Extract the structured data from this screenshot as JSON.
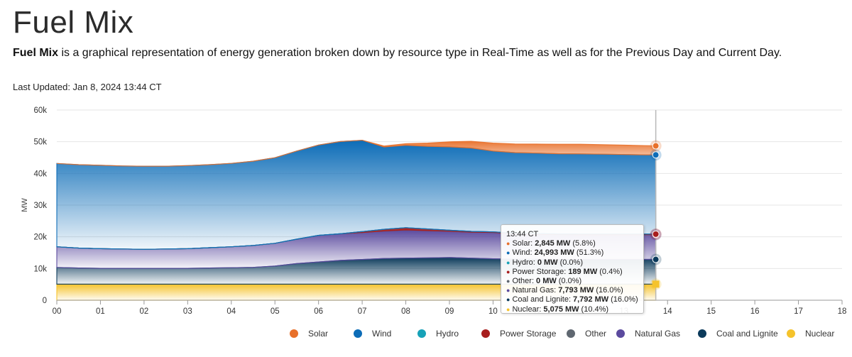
{
  "page": {
    "title": "Fuel Mix",
    "desc_bold": "Fuel Mix",
    "desc_rest": " is a graphical representation of energy generation broken down by resource type in Real-Time as well as for the Previous Day and Current Day.",
    "last_updated": "Last Updated: Jan 8, 2024 13:44 CT"
  },
  "tooltip": {
    "time": "13:44 CT",
    "rows": [
      {
        "label": "Solar:",
        "value": "2,845 MW",
        "pct": "(5.8%)",
        "color": "#e8702a"
      },
      {
        "label": "Wind:",
        "value": "24,993 MW",
        "pct": "(51.3%)",
        "color": "#0c6cb7"
      },
      {
        "label": "Hydro:",
        "value": "0 MW",
        "pct": "(0.0%)",
        "color": "#17a2b8"
      },
      {
        "label": "Power Storage:",
        "value": "189 MW",
        "pct": "(0.4%)",
        "color": "#a81e1e"
      },
      {
        "label": "Other:",
        "value": "0 MW",
        "pct": "(0.0%)",
        "color": "#5f6770"
      },
      {
        "label": "Natural Gas:",
        "value": "7,793 MW",
        "pct": "(16.0%)",
        "color": "#5b4a9e"
      },
      {
        "label": "Coal and Lignite:",
        "value": "7,792 MW",
        "pct": "(16.0%)",
        "color": "#0b3a5b"
      },
      {
        "label": "Nuclear:",
        "value": "5,075 MW",
        "pct": "(10.4%)",
        "color": "#f5c32c"
      }
    ]
  },
  "chart_data": {
    "type": "area",
    "stacked": true,
    "ylabel": "MW",
    "ylim": [
      0,
      60000
    ],
    "yticks": [
      {
        "v": 0,
        "label": "0"
      },
      {
        "v": 10000,
        "label": "10k"
      },
      {
        "v": 20000,
        "label": "20k"
      },
      {
        "v": 30000,
        "label": "30k"
      },
      {
        "v": 40000,
        "label": "40k"
      },
      {
        "v": 50000,
        "label": "50k"
      },
      {
        "v": 60000,
        "label": "60k"
      }
    ],
    "xlim": [
      0,
      18
    ],
    "xticks": [
      "00",
      "01",
      "02",
      "03",
      "04",
      "05",
      "06",
      "07",
      "08",
      "09",
      "10",
      "11",
      "12",
      "13",
      "14",
      "15",
      "16",
      "17",
      "18"
    ],
    "cursor_hour": 13.73,
    "x": [
      0,
      0.5,
      1,
      1.5,
      2,
      2.5,
      3,
      3.5,
      4,
      4.5,
      5,
      5.5,
      6,
      6.5,
      7,
      7.5,
      8,
      8.5,
      9,
      9.5,
      10,
      10.5,
      11,
      11.5,
      12,
      12.5,
      13,
      13.5,
      13.73
    ],
    "series": [
      {
        "name": "Nuclear",
        "color": "#f5c32c",
        "values": [
          5050,
          5060,
          5060,
          5060,
          5060,
          5060,
          5060,
          5060,
          5060,
          5060,
          5060,
          5060,
          5060,
          5060,
          5060,
          5060,
          5070,
          5070,
          5070,
          5070,
          5070,
          5070,
          5070,
          5075,
          5075,
          5075,
          5075,
          5075,
          5075
        ]
      },
      {
        "name": "Coal and Lignite",
        "color": "#0b3a5b",
        "values": [
          5300,
          5100,
          5000,
          5000,
          5000,
          5000,
          5000,
          5100,
          5200,
          5300,
          5700,
          6500,
          7000,
          7500,
          7800,
          8100,
          8200,
          8300,
          8400,
          8200,
          8000,
          7900,
          7850,
          7800,
          7800,
          7800,
          7800,
          7792,
          7792
        ]
      },
      {
        "name": "Natural Gas",
        "color": "#5b4a9e",
        "values": [
          6500,
          6300,
          6200,
          6100,
          6000,
          6100,
          6200,
          6400,
          6600,
          6900,
          7200,
          7700,
          8400,
          8400,
          8500,
          8700,
          8900,
          8600,
          8300,
          8200,
          8300,
          8000,
          7900,
          7850,
          7800,
          7800,
          7800,
          7800,
          7793
        ]
      },
      {
        "name": "Other",
        "color": "#5f6770",
        "values": [
          0,
          0,
          0,
          0,
          0,
          0,
          0,
          0,
          0,
          0,
          0,
          0,
          0,
          0,
          0,
          0,
          0,
          0,
          0,
          0,
          0,
          0,
          0,
          0,
          0,
          0,
          0,
          0,
          0
        ]
      },
      {
        "name": "Power Storage",
        "color": "#a81e1e",
        "values": [
          0,
          0,
          0,
          0,
          0,
          0,
          0,
          0,
          0,
          0,
          0,
          0,
          0,
          0,
          300,
          500,
          700,
          500,
          300,
          250,
          200,
          200,
          190,
          190,
          189,
          189,
          189,
          189,
          189
        ]
      },
      {
        "name": "Hydro",
        "color": "#17a2b8",
        "values": [
          0,
          0,
          0,
          0,
          0,
          0,
          0,
          0,
          0,
          0,
          0,
          0,
          0,
          0,
          0,
          0,
          0,
          0,
          0,
          0,
          0,
          0,
          0,
          0,
          0,
          0,
          0,
          0,
          0
        ]
      },
      {
        "name": "Wind",
        "color": "#0c6cb7",
        "values": [
          26300,
          26300,
          26300,
          26200,
          26200,
          26100,
          26200,
          26200,
          26300,
          26600,
          27000,
          27800,
          28500,
          29100,
          28800,
          26000,
          26000,
          26100,
          26300,
          26300,
          25500,
          25400,
          25400,
          25300,
          25300,
          25200,
          25100,
          25000,
          24993
        ]
      },
      {
        "name": "Solar",
        "color": "#e8702a",
        "values": [
          0,
          0,
          0,
          0,
          0,
          0,
          0,
          0,
          0,
          0,
          0,
          0,
          0,
          0,
          0,
          300,
          500,
          1000,
          1600,
          2100,
          2500,
          2700,
          2850,
          3000,
          3050,
          3000,
          2950,
          2900,
          2845
        ]
      }
    ]
  },
  "legend": {
    "items": [
      {
        "name": "Solar",
        "color": "#e8702a"
      },
      {
        "name": "Wind",
        "color": "#0c6cb7"
      },
      {
        "name": "Hydro",
        "color": "#17a2b8"
      },
      {
        "name": "Power Storage",
        "color": "#a81e1e"
      },
      {
        "name": "Other",
        "color": "#5f6770"
      },
      {
        "name": "Natural Gas",
        "color": "#5b4a9e"
      },
      {
        "name": "Coal and Lignite",
        "color": "#0b3a5b"
      },
      {
        "name": "Nuclear",
        "color": "#f5c32c"
      }
    ]
  }
}
